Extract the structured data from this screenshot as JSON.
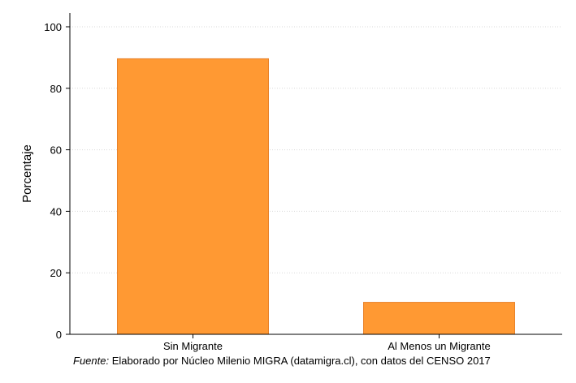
{
  "chart_data": {
    "type": "bar",
    "categories": [
      "Sin Migrante",
      "Al Menos un Migrante"
    ],
    "values": [
      89.6,
      10.4
    ],
    "title": "",
    "xlabel": "",
    "ylabel": "Porcentaje",
    "ylim": [
      0,
      100
    ],
    "yticks": [
      0,
      20,
      40,
      60,
      80,
      100
    ],
    "grid": true,
    "bar_color": "#ff9933",
    "bar_edge_color": "#e8822a"
  },
  "source": {
    "prefix": "Fuente:",
    "text": " Elaborado por Núcleo Milenio MIGRA (datamigra.cl), con datos del CENSO 2017"
  }
}
